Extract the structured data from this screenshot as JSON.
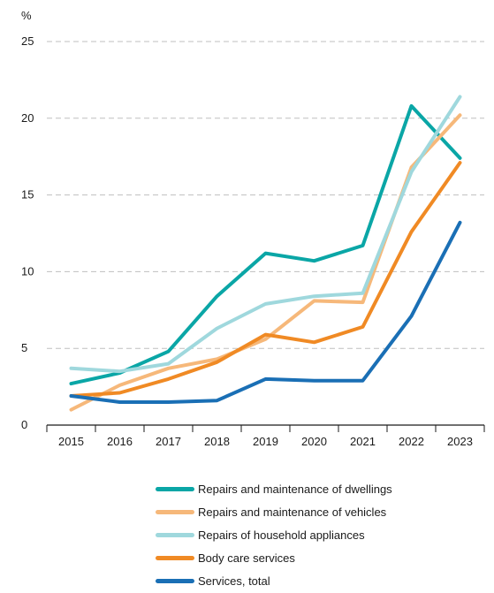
{
  "chart_data": {
    "type": "line",
    "ylabel": "%",
    "ylim": [
      0,
      25
    ],
    "yticks": [
      0,
      5,
      10,
      15,
      20,
      25
    ],
    "grid": "horizontal dashed",
    "legend_position": "bottom",
    "categories": [
      "2015",
      "2016",
      "2017",
      "2018",
      "2019",
      "2020",
      "2021",
      "2022",
      "2023"
    ],
    "series": [
      {
        "name": "Repairs and maintenance of dwellings",
        "color": "#0aa6a6",
        "values": [
          2.7,
          3.4,
          4.8,
          8.4,
          11.2,
          10.7,
          11.7,
          20.8,
          17.4
        ]
      },
      {
        "name": "Repairs and maintenance of vehicles",
        "color": "#f6b87a",
        "values": [
          1.0,
          2.6,
          3.7,
          4.3,
          5.6,
          8.1,
          8.0,
          16.8,
          20.2
        ]
      },
      {
        "name": "Repairs of household appliances",
        "color": "#9fd8dd",
        "values": [
          3.7,
          3.5,
          4.0,
          6.3,
          7.9,
          8.4,
          8.6,
          16.5,
          21.4
        ]
      },
      {
        "name": "Body care services",
        "color": "#f08a24",
        "values": [
          1.9,
          2.1,
          3.0,
          4.1,
          5.9,
          5.4,
          6.4,
          12.6,
          17.1
        ]
      },
      {
        "name": "Services, total",
        "color": "#1a6fb5",
        "values": [
          1.9,
          1.5,
          1.5,
          1.6,
          3.0,
          2.9,
          2.9,
          7.1,
          13.2
        ]
      }
    ]
  }
}
